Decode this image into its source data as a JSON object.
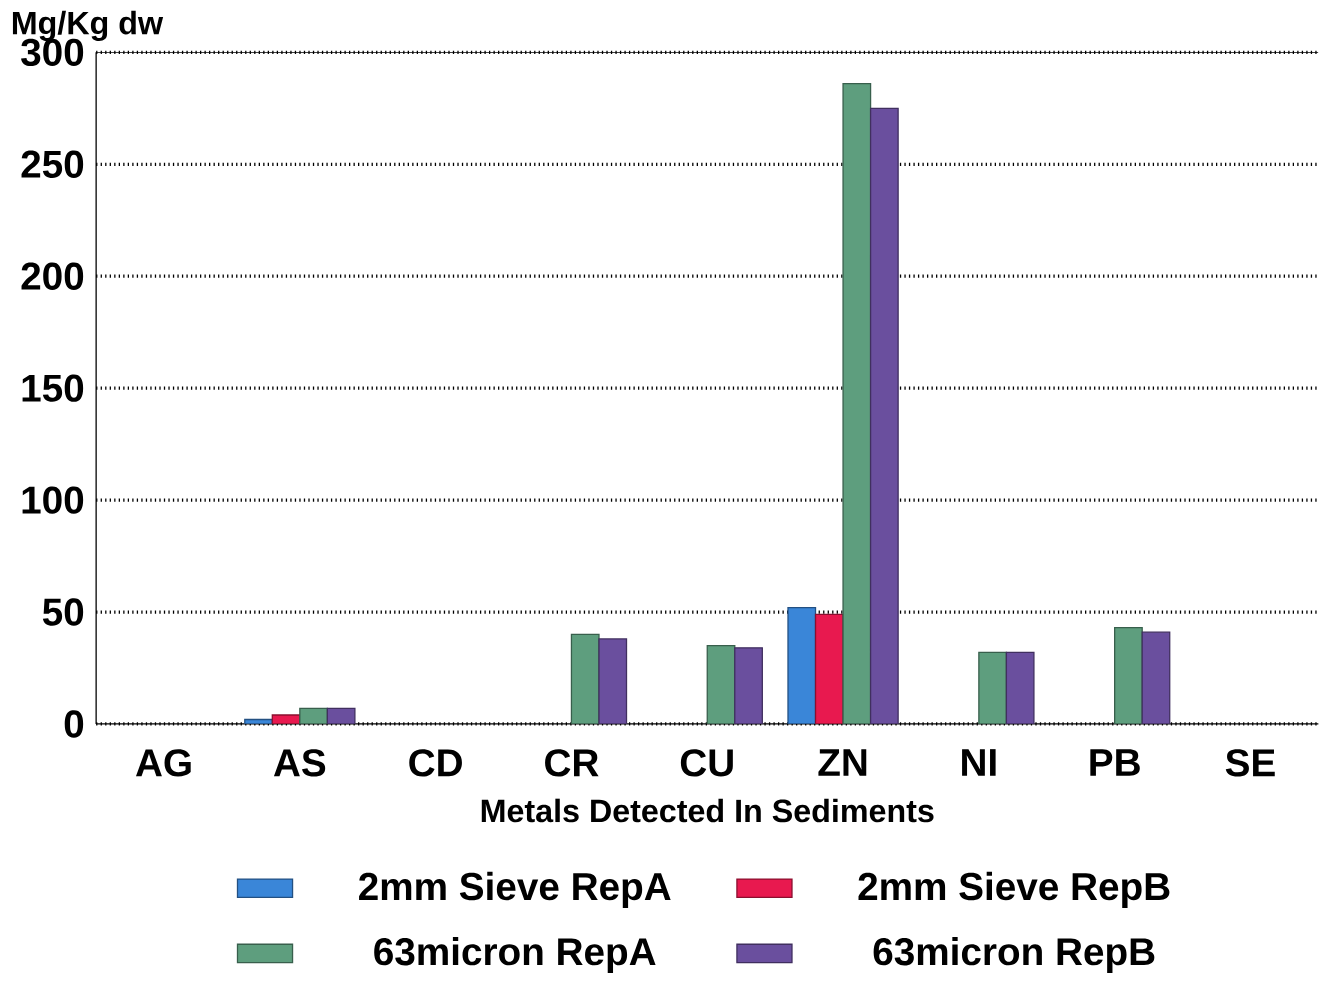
{
  "chart_data": {
    "type": "bar",
    "xlabel": "Metals Detected In Sediments",
    "ylabel": "Mg/Kg dw",
    "categories": [
      "AG",
      "AS",
      "CD",
      "CR",
      "CU",
      "ZN",
      "NI",
      "PB",
      "SE"
    ],
    "series": [
      {
        "name": "2mm Sieve RepA",
        "color": "#3a86d8",
        "values": [
          null,
          2,
          null,
          null,
          null,
          52,
          null,
          null,
          null
        ]
      },
      {
        "name": "2mm Sieve RepB",
        "color": "#e8194f",
        "values": [
          null,
          4,
          null,
          null,
          null,
          49,
          null,
          null,
          null
        ]
      },
      {
        "name": "63micron RepA",
        "color": "#5e9e7e",
        "values": [
          null,
          7,
          null,
          40,
          35,
          286,
          32,
          43,
          null
        ]
      },
      {
        "name": "63micron RepB",
        "color": "#6a4f9e",
        "values": [
          null,
          7,
          null,
          38,
          34,
          275,
          32,
          41,
          null
        ]
      }
    ],
    "ylim": [
      0,
      300
    ],
    "yticks": [
      0,
      50,
      100,
      150,
      200,
      250,
      300
    ],
    "grid": "y",
    "legend": "bottom"
  }
}
